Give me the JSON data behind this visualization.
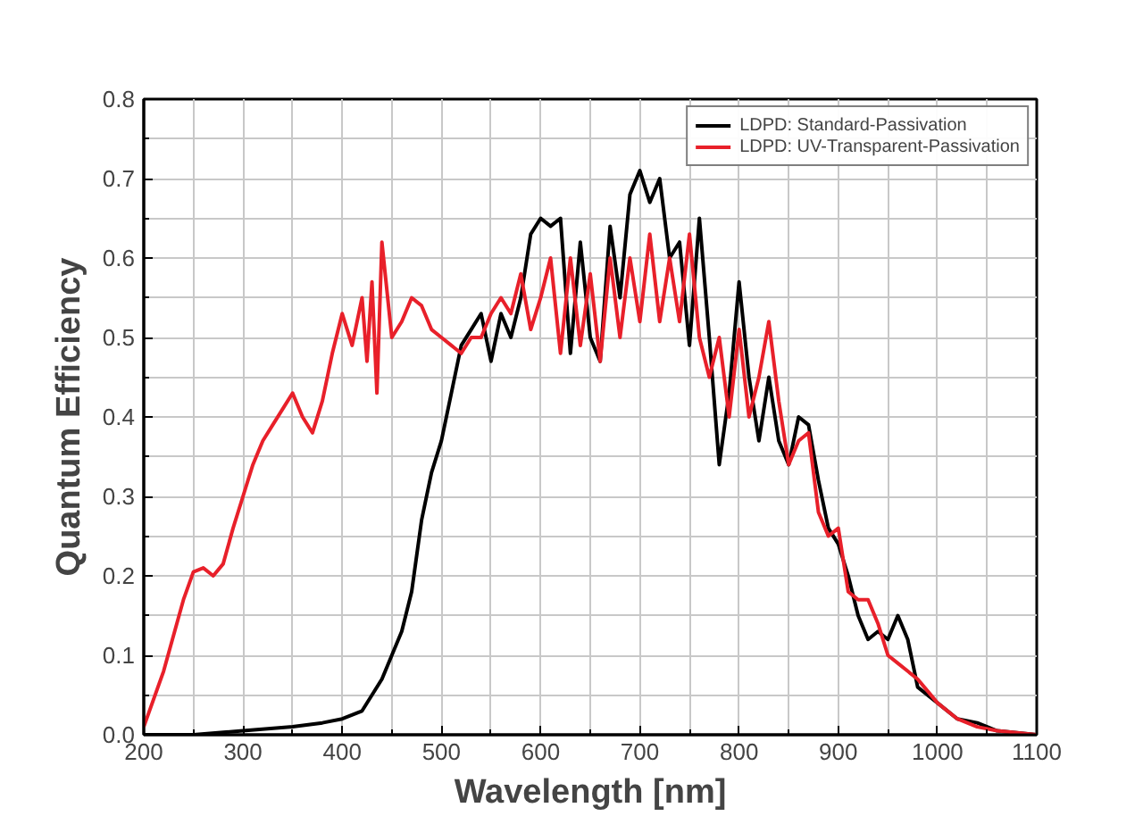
{
  "chart_data": {
    "type": "line",
    "xlabel": "Wavelength [nm]",
    "ylabel": "Quantum Efficiency",
    "xlim": [
      200,
      1100
    ],
    "ylim": [
      0,
      0.8
    ],
    "xticks": [
      200,
      300,
      400,
      500,
      600,
      700,
      800,
      900,
      1000,
      1100
    ],
    "yticks": [
      {
        "value": 0,
        "label": "0.0"
      },
      0.1,
      0.2,
      0.3,
      0.4,
      0.5,
      0.6,
      0.7,
      0.8
    ],
    "grid": true,
    "legend": "top right",
    "line_style": "solid",
    "series": [
      {
        "name": "LDPD: Standard-Passivation",
        "color": "#000000",
        "x": [
          200,
          250,
          300,
          350,
          380,
          400,
          420,
          430,
          440,
          450,
          460,
          470,
          480,
          490,
          500,
          510,
          520,
          530,
          540,
          550,
          560,
          570,
          580,
          590,
          600,
          610,
          620,
          630,
          640,
          650,
          660,
          670,
          680,
          690,
          700,
          710,
          720,
          730,
          740,
          750,
          760,
          770,
          780,
          790,
          800,
          810,
          820,
          830,
          840,
          850,
          860,
          870,
          880,
          890,
          900,
          910,
          920,
          930,
          940,
          950,
          960,
          970,
          980,
          1000,
          1020,
          1040,
          1060,
          1100
        ],
        "values": [
          0.0,
          0.0,
          0.005,
          0.01,
          0.015,
          0.02,
          0.03,
          0.05,
          0.07,
          0.1,
          0.13,
          0.18,
          0.27,
          0.33,
          0.37,
          0.43,
          0.49,
          0.51,
          0.53,
          0.47,
          0.53,
          0.5,
          0.55,
          0.63,
          0.65,
          0.64,
          0.65,
          0.48,
          0.62,
          0.5,
          0.47,
          0.64,
          0.55,
          0.68,
          0.71,
          0.67,
          0.7,
          0.6,
          0.62,
          0.49,
          0.65,
          0.5,
          0.34,
          0.43,
          0.57,
          0.45,
          0.37,
          0.45,
          0.37,
          0.34,
          0.4,
          0.39,
          0.32,
          0.26,
          0.24,
          0.2,
          0.15,
          0.12,
          0.13,
          0.12,
          0.15,
          0.12,
          0.06,
          0.04,
          0.02,
          0.015,
          0.005,
          0.0
        ]
      },
      {
        "name": "LDPD: UV-Transparent-Passivation",
        "color": "#e8202a",
        "x": [
          200,
          220,
          240,
          250,
          260,
          270,
          280,
          290,
          300,
          310,
          320,
          330,
          340,
          350,
          360,
          370,
          380,
          390,
          400,
          410,
          420,
          425,
          430,
          435,
          440,
          450,
          460,
          470,
          480,
          490,
          500,
          510,
          520,
          530,
          540,
          550,
          560,
          570,
          580,
          590,
          600,
          610,
          620,
          630,
          640,
          650,
          660,
          670,
          680,
          690,
          700,
          710,
          720,
          730,
          740,
          750,
          760,
          770,
          780,
          790,
          800,
          810,
          820,
          830,
          840,
          850,
          860,
          870,
          880,
          890,
          900,
          910,
          920,
          930,
          940,
          950,
          960,
          970,
          980,
          1000,
          1020,
          1040,
          1060,
          1100
        ],
        "values": [
          0.01,
          0.08,
          0.17,
          0.205,
          0.21,
          0.2,
          0.215,
          0.26,
          0.3,
          0.34,
          0.37,
          0.39,
          0.41,
          0.43,
          0.4,
          0.38,
          0.42,
          0.48,
          0.53,
          0.49,
          0.55,
          0.47,
          0.57,
          0.43,
          0.62,
          0.5,
          0.52,
          0.55,
          0.54,
          0.51,
          0.5,
          0.49,
          0.48,
          0.5,
          0.5,
          0.53,
          0.55,
          0.53,
          0.58,
          0.51,
          0.55,
          0.6,
          0.48,
          0.6,
          0.49,
          0.58,
          0.47,
          0.6,
          0.5,
          0.6,
          0.52,
          0.63,
          0.52,
          0.6,
          0.52,
          0.63,
          0.5,
          0.45,
          0.5,
          0.4,
          0.51,
          0.4,
          0.45,
          0.52,
          0.42,
          0.34,
          0.37,
          0.38,
          0.28,
          0.25,
          0.26,
          0.18,
          0.17,
          0.17,
          0.14,
          0.1,
          0.09,
          0.08,
          0.07,
          0.04,
          0.02,
          0.01,
          0.005,
          0.0
        ]
      }
    ]
  }
}
